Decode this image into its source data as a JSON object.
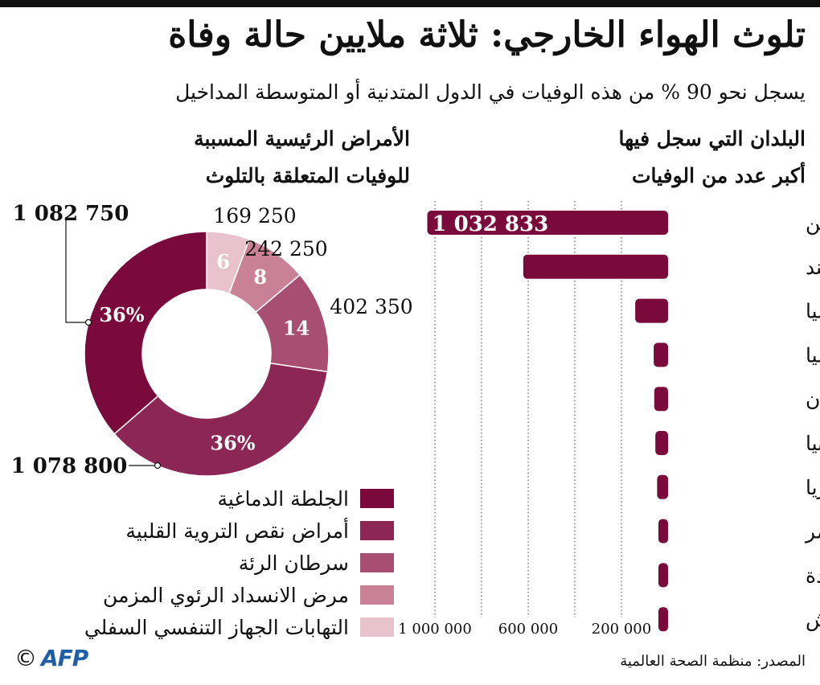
{
  "title": "تلوث الهواء الخارجي: ثلاثة ملايين حالة وفاة",
  "subtitle": "يسجل نحو 90 % من هذه الوفيات في الدول المتدنية أو المتوسطة المداخيل",
  "source": "المصدر: منظمة الصحة العالمية",
  "logo": {
    "copyright": "©",
    "name": "AFP"
  },
  "colors": {
    "dark": "#7a0a3c",
    "c1": "#7a0a3c",
    "c2": "#8c2655",
    "c3": "#a94e73",
    "c4": "#c98197",
    "c5": "#e8c2cd",
    "grid": "#444444"
  },
  "chart_data": [
    {
      "type": "bar",
      "orientation": "horizontal",
      "title_lines": [
        "البلدان التي سجل فيها",
        "أكبر عدد من الوفيات"
      ],
      "categories": [
        "الصين",
        "الهند",
        "روسيا",
        "إندونيسيا",
        "باكستان",
        "أوكرانيا",
        "نيجيريا",
        "مصر",
        "الولايات المتحدة",
        "بنغلادش"
      ],
      "values": [
        1032833,
        621138,
        140901,
        61606,
        59241,
        54507,
        46885,
        35451,
        38043,
        37449
      ],
      "data_labels": [
        "1 032 833",
        "",
        "",
        "",
        "",
        "",
        "",
        "",
        "",
        ""
      ],
      "xlim": [
        0,
        1000000
      ],
      "xticks": [
        1000000,
        600000,
        200000
      ],
      "xtick_labels": [
        "1 000 000",
        "600 000",
        "200 000"
      ],
      "gridlines": [
        1000000,
        800000,
        600000,
        400000,
        200000
      ],
      "direction": "right-to-left"
    },
    {
      "type": "pie",
      "donut": true,
      "title_lines": [
        "الأمراض الرئيسية المسببة",
        "للوفيات المتعلقة بالتلوث"
      ],
      "slices": [
        {
          "label": "الجلطة الدماغية",
          "value": 1082750,
          "value_label": "1 082 750",
          "percent_label": "36%",
          "color": "#7a0a3c"
        },
        {
          "label": "أمراض نقص التروية القلبية",
          "value": 1078800,
          "value_label": "1 078 800",
          "percent_label": "36%",
          "color": "#8c2655"
        },
        {
          "label": "سرطان الرئة",
          "value": 402350,
          "value_label": "402 350",
          "percent_label": "14",
          "color": "#a94e73"
        },
        {
          "label": "مرض الانسداد الرئوي المزمن",
          "value": 242250,
          "value_label": "242 250",
          "percent_label": "8",
          "color": "#c98197"
        },
        {
          "label": "التهابات الجهاز التنفسي السفلي",
          "value": 169250,
          "value_label": "169 250",
          "percent_label": "6",
          "color": "#e8c2cd"
        }
      ],
      "legend_placement": "bottom"
    }
  ]
}
